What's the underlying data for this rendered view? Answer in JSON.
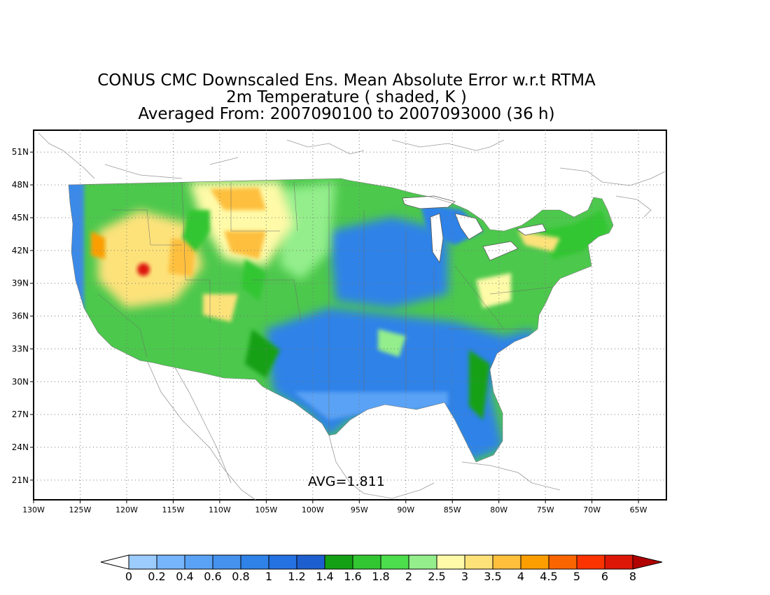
{
  "title": {
    "line1": "CONUS CMC Downscaled Ens. Mean Absolute Error w.r.t RTMA",
    "line2": "2m Temperature ( shaded, K )",
    "line3": "Averaged From: 2007090100 to 2007093000 (36 h)"
  },
  "map": {
    "lat_ticks": [
      "51N",
      "48N",
      "45N",
      "42N",
      "39N",
      "36N",
      "33N",
      "30N",
      "27N",
      "24N",
      "21N"
    ],
    "lon_ticks": [
      "130W",
      "125W",
      "120W",
      "115W",
      "110W",
      "105W",
      "100W",
      "95W",
      "90W",
      "85W",
      "80W",
      "75W",
      "70W",
      "65W"
    ],
    "lat_range": [
      19.2,
      53.0
    ],
    "lon_range": [
      -130,
      -62
    ],
    "grid": true,
    "avg_label": "AVG=1.811"
  },
  "colorbar": {
    "labels": [
      "0",
      "0.2",
      "0.4",
      "0.6",
      "0.8",
      "1",
      "1.2",
      "1.4",
      "1.6",
      "1.8",
      "2",
      "2.5",
      "3",
      "3.5",
      "4",
      "4.5",
      "5",
      "6",
      "8"
    ],
    "colors": [
      "#ffffff",
      "#9ccbfd",
      "#76b4fb",
      "#5aa2f5",
      "#4592ee",
      "#2f82e8",
      "#2471e2",
      "#1e5fcf",
      "#14a014",
      "#33c633",
      "#4cde4c",
      "#93ee8b",
      "#fefaa8",
      "#fde27a",
      "#fdbf3c",
      "#fd9e00",
      "#fb6500",
      "#fb3300",
      "#dd1708",
      "#b00000"
    ]
  }
}
